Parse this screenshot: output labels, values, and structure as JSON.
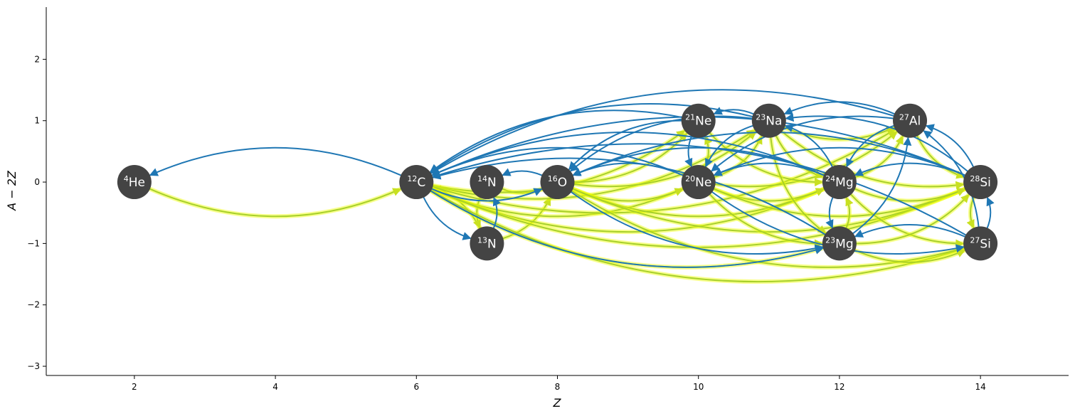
{
  "chart_data": {
    "type": "network",
    "xlabel": "Z",
    "ylabel": "A − 2Z",
    "xlim": [
      0.75,
      15.25
    ],
    "ylim": [
      -3.15,
      2.85
    ],
    "xticks": [
      2,
      4,
      6,
      8,
      10,
      12,
      14
    ],
    "yticks": [
      -3,
      -2,
      -1,
      0,
      1,
      2
    ],
    "grid": false,
    "node_color": "#444444",
    "edge_colors": {
      "forward": "#1f77b4",
      "reverse": "#a8d02a",
      "highlight": "#f0ff00"
    },
    "nodes": [
      {
        "id": "he4",
        "mass": "4",
        "symbol": "He",
        "Z": 2,
        "N_minus_Z": 0
      },
      {
        "id": "c12",
        "mass": "12",
        "symbol": "C",
        "Z": 6,
        "N_minus_Z": 0
      },
      {
        "id": "n13",
        "mass": "13",
        "symbol": "N",
        "Z": 7,
        "N_minus_Z": -1
      },
      {
        "id": "n14",
        "mass": "14",
        "symbol": "N",
        "Z": 7,
        "N_minus_Z": 0
      },
      {
        "id": "o16",
        "mass": "16",
        "symbol": "O",
        "Z": 8,
        "N_minus_Z": 0
      },
      {
        "id": "ne20",
        "mass": "20",
        "symbol": "Ne",
        "Z": 10,
        "N_minus_Z": 0
      },
      {
        "id": "ne21",
        "mass": "21",
        "symbol": "Ne",
        "Z": 10,
        "N_minus_Z": 1
      },
      {
        "id": "na23",
        "mass": "23",
        "symbol": "Na",
        "Z": 11,
        "N_minus_Z": 1
      },
      {
        "id": "mg23",
        "mass": "23",
        "symbol": "Mg",
        "Z": 12,
        "N_minus_Z": -1
      },
      {
        "id": "mg24",
        "mass": "24",
        "symbol": "Mg",
        "Z": 12,
        "N_minus_Z": 0
      },
      {
        "id": "al27",
        "mass": "27",
        "symbol": "Al",
        "Z": 13,
        "N_minus_Z": 1
      },
      {
        "id": "si27",
        "mass": "27",
        "symbol": "Si",
        "Z": 14,
        "N_minus_Z": -1
      },
      {
        "id": "si28",
        "mass": "28",
        "symbol": "Si",
        "Z": 14,
        "N_minus_Z": 0
      }
    ],
    "forward_edges": [
      [
        "c12",
        "he4"
      ],
      [
        "c12",
        "n13"
      ],
      [
        "n13",
        "n14"
      ],
      [
        "c12",
        "o16"
      ],
      [
        "o16",
        "n14"
      ],
      [
        "ne20",
        "c12"
      ],
      [
        "ne21",
        "c12"
      ],
      [
        "na23",
        "c12"
      ],
      [
        "mg24",
        "c12"
      ],
      [
        "mg23",
        "c12"
      ],
      [
        "al27",
        "c12"
      ],
      [
        "si28",
        "c12"
      ],
      [
        "si27",
        "c12"
      ],
      [
        "ne20",
        "o16"
      ],
      [
        "ne21",
        "o16"
      ],
      [
        "na23",
        "o16"
      ],
      [
        "mg24",
        "o16"
      ],
      [
        "si28",
        "o16"
      ],
      [
        "ne21",
        "ne20"
      ],
      [
        "na23",
        "ne20"
      ],
      [
        "mg24",
        "ne20"
      ],
      [
        "al27",
        "ne20"
      ],
      [
        "si28",
        "ne20"
      ],
      [
        "na23",
        "ne21"
      ],
      [
        "al27",
        "na23"
      ],
      [
        "mg24",
        "na23"
      ],
      [
        "si28",
        "na23"
      ],
      [
        "mg24",
        "mg23"
      ],
      [
        "mg23",
        "al27"
      ],
      [
        "si27",
        "mg23"
      ],
      [
        "al27",
        "mg24"
      ],
      [
        "si28",
        "mg24"
      ],
      [
        "si28",
        "al27"
      ],
      [
        "si27",
        "al27"
      ],
      [
        "si27",
        "si28"
      ],
      [
        "c12",
        "mg23"
      ],
      [
        "o16",
        "mg23"
      ],
      [
        "ne20",
        "si27"
      ]
    ],
    "reverse_edges": [
      [
        "he4",
        "c12"
      ],
      [
        "n13",
        "c12"
      ],
      [
        "n14",
        "n13"
      ],
      [
        "n14",
        "o16"
      ],
      [
        "n13",
        "o16"
      ],
      [
        "c12",
        "ne20"
      ],
      [
        "c12",
        "ne21"
      ],
      [
        "c12",
        "na23"
      ],
      [
        "c12",
        "mg24"
      ],
      [
        "c12",
        "mg23"
      ],
      [
        "c12",
        "al27"
      ],
      [
        "c12",
        "si28"
      ],
      [
        "c12",
        "si27"
      ],
      [
        "o16",
        "ne20"
      ],
      [
        "o16",
        "ne21"
      ],
      [
        "o16",
        "na23"
      ],
      [
        "o16",
        "mg24"
      ],
      [
        "o16",
        "si28"
      ],
      [
        "o16",
        "si27"
      ],
      [
        "ne20",
        "ne21"
      ],
      [
        "ne20",
        "na23"
      ],
      [
        "ne20",
        "mg24"
      ],
      [
        "ne20",
        "al27"
      ],
      [
        "ne20",
        "si28"
      ],
      [
        "ne20",
        "mg23"
      ],
      [
        "na23",
        "al27"
      ],
      [
        "na23",
        "mg24"
      ],
      [
        "na23",
        "si28"
      ],
      [
        "mg23",
        "mg24"
      ],
      [
        "mg23",
        "si27"
      ],
      [
        "mg24",
        "al27"
      ],
      [
        "mg24",
        "si28"
      ],
      [
        "mg24",
        "si27"
      ],
      [
        "al27",
        "si28"
      ],
      [
        "si28",
        "si27"
      ],
      [
        "ne21",
        "mg24"
      ],
      [
        "na23",
        "mg23"
      ],
      [
        "mg23",
        "si28"
      ]
    ]
  }
}
